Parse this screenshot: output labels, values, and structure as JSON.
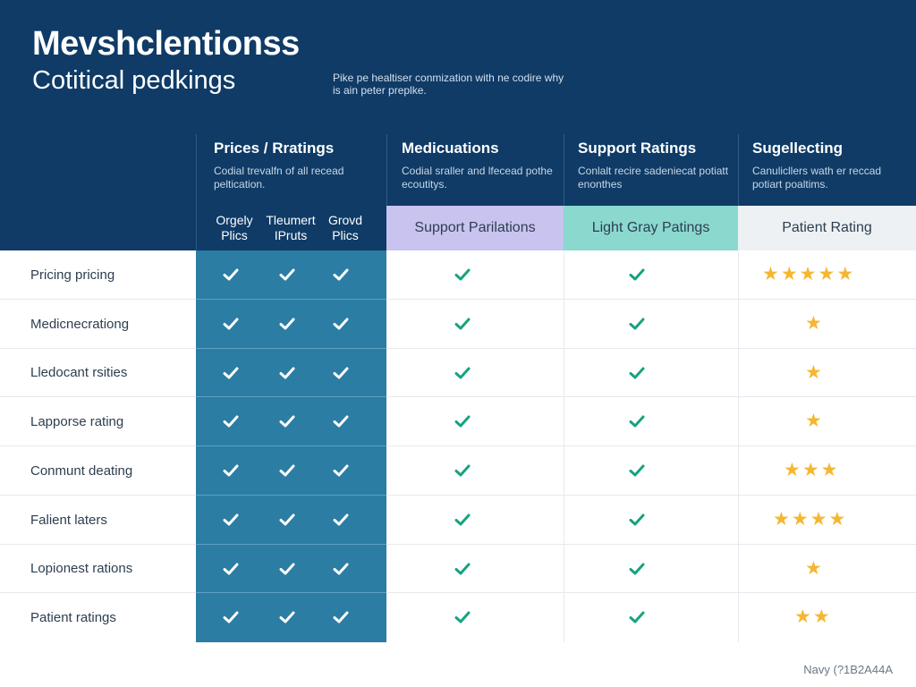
{
  "header": {
    "title": "Mevshclentionss",
    "subtitle": "Cotitical pedkings",
    "intro": "Pike pe healtiser conmization with ne codire why is ain peter preplke."
  },
  "columns": {
    "prices": {
      "title": "Prices / Rratings",
      "desc": "Codial trevalfn of all recead peltication.",
      "subheads": [
        "Orgely Plics",
        "Tleumert IPruts",
        "Grovd Plics"
      ]
    },
    "medications": {
      "title": "Medicuations",
      "desc": "Codial sraller and lfecead pothe ecoutitys.",
      "band": "Support Parilations"
    },
    "support": {
      "title": "Support Ratings",
      "desc": "Conlalt recire sadeniecat potiatt enonthes",
      "band": "Light Gray Patings"
    },
    "suggesting": {
      "title": "Sugellecting",
      "desc": "Canulicllers wath er reccad potiart poaltims.",
      "band": "Patient Rating"
    }
  },
  "rows": [
    {
      "label": "Pricing pricing",
      "stars": 5
    },
    {
      "label": "Medicnecrationg",
      "stars": 1
    },
    {
      "label": "Lledocant rsities",
      "stars": 1
    },
    {
      "label": "Lapporse rating",
      "stars": 1
    },
    {
      "label": "Conmunt deating",
      "stars": 3
    },
    {
      "label": "Falient laters",
      "stars": 4
    },
    {
      "label": "Lopionest rations",
      "stars": 1
    },
    {
      "label": "Patient ratings",
      "stars": 2
    }
  ],
  "footnote": "Navy (?1B2A44A",
  "colors": {
    "navy": "#0f3b66",
    "blue_column": "#2b7da3",
    "purple_band": "#c9c3ef",
    "teal_band": "#8bd8cf",
    "check_green": "#16a37f",
    "star_gold": "#f5b731"
  },
  "icons": {
    "check": "check-icon",
    "star": "star-icon"
  }
}
